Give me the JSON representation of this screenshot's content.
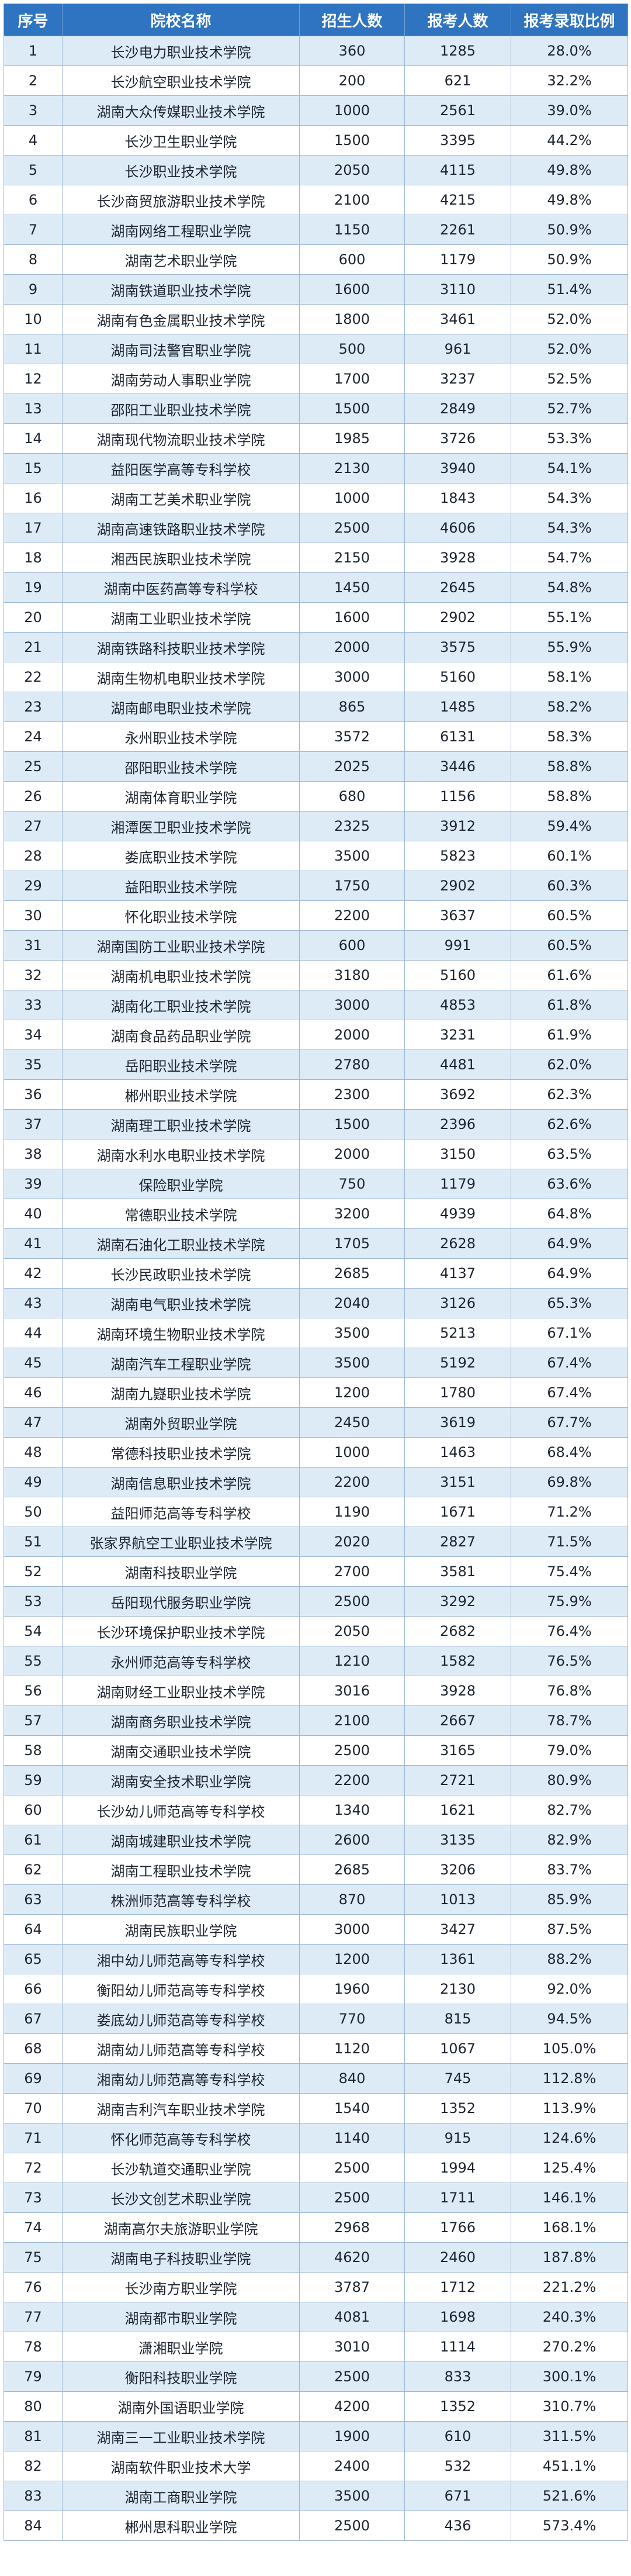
{
  "colors": {
    "header_bg": "#2f74c0",
    "odd_row_bg": "#ddebf7",
    "even_row_bg": "#ffffff",
    "border": "#9fb8d3"
  },
  "columns": [
    "序号",
    "院校名称",
    "招生人数",
    "报考人数",
    "报考录取比例"
  ],
  "rows": [
    [
      "1",
      "长沙电力职业技术学院",
      "360",
      "1285",
      "28.0%"
    ],
    [
      "2",
      "长沙航空职业技术学院",
      "200",
      "621",
      "32.2%"
    ],
    [
      "3",
      "湖南大众传媒职业技术学院",
      "1000",
      "2561",
      "39.0%"
    ],
    [
      "4",
      "长沙卫生职业学院",
      "1500",
      "3395",
      "44.2%"
    ],
    [
      "5",
      "长沙职业技术学院",
      "2050",
      "4115",
      "49.8%"
    ],
    [
      "6",
      "长沙商贸旅游职业技术学院",
      "2100",
      "4215",
      "49.8%"
    ],
    [
      "7",
      "湖南网络工程职业学院",
      "1150",
      "2261",
      "50.9%"
    ],
    [
      "8",
      "湖南艺术职业学院",
      "600",
      "1179",
      "50.9%"
    ],
    [
      "9",
      "湖南铁道职业技术学院",
      "1600",
      "3110",
      "51.4%"
    ],
    [
      "10",
      "湖南有色金属职业技术学院",
      "1800",
      "3461",
      "52.0%"
    ],
    [
      "11",
      "湖南司法警官职业学院",
      "500",
      "961",
      "52.0%"
    ],
    [
      "12",
      "湖南劳动人事职业学院",
      "1700",
      "3237",
      "52.5%"
    ],
    [
      "13",
      "邵阳工业职业技术学院",
      "1500",
      "2849",
      "52.7%"
    ],
    [
      "14",
      "湖南现代物流职业技术学院",
      "1985",
      "3726",
      "53.3%"
    ],
    [
      "15",
      "益阳医学高等专科学校",
      "2130",
      "3940",
      "54.1%"
    ],
    [
      "16",
      "湖南工艺美术职业学院",
      "1000",
      "1843",
      "54.3%"
    ],
    [
      "17",
      "湖南高速铁路职业技术学院",
      "2500",
      "4606",
      "54.3%"
    ],
    [
      "18",
      "湘西民族职业技术学院",
      "2150",
      "3928",
      "54.7%"
    ],
    [
      "19",
      "湖南中医药高等专科学校",
      "1450",
      "2645",
      "54.8%"
    ],
    [
      "20",
      "湖南工业职业技术学院",
      "1600",
      "2902",
      "55.1%"
    ],
    [
      "21",
      "湖南铁路科技职业技术学院",
      "2000",
      "3575",
      "55.9%"
    ],
    [
      "22",
      "湖南生物机电职业技术学院",
      "3000",
      "5160",
      "58.1%"
    ],
    [
      "23",
      "湖南邮电职业技术学院",
      "865",
      "1485",
      "58.2%"
    ],
    [
      "24",
      "永州职业技术学院",
      "3572",
      "6131",
      "58.3%"
    ],
    [
      "25",
      "邵阳职业技术学院",
      "2025",
      "3446",
      "58.8%"
    ],
    [
      "26",
      "湖南体育职业学院",
      "680",
      "1156",
      "58.8%"
    ],
    [
      "27",
      "湘潭医卫职业技术学院",
      "2325",
      "3912",
      "59.4%"
    ],
    [
      "28",
      "娄底职业技术学院",
      "3500",
      "5823",
      "60.1%"
    ],
    [
      "29",
      "益阳职业技术学院",
      "1750",
      "2902",
      "60.3%"
    ],
    [
      "30",
      "怀化职业技术学院",
      "2200",
      "3637",
      "60.5%"
    ],
    [
      "31",
      "湖南国防工业职业技术学院",
      "600",
      "991",
      "60.5%"
    ],
    [
      "32",
      "湖南机电职业技术学院",
      "3180",
      "5160",
      "61.6%"
    ],
    [
      "33",
      "湖南化工职业技术学院",
      "3000",
      "4853",
      "61.8%"
    ],
    [
      "34",
      "湖南食品药品职业学院",
      "2000",
      "3231",
      "61.9%"
    ],
    [
      "35",
      "岳阳职业技术学院",
      "2780",
      "4481",
      "62.0%"
    ],
    [
      "36",
      "郴州职业技术学院",
      "2300",
      "3692",
      "62.3%"
    ],
    [
      "37",
      "湖南理工职业技术学院",
      "1500",
      "2396",
      "62.6%"
    ],
    [
      "38",
      "湖南水利水电职业技术学院",
      "2000",
      "3150",
      "63.5%"
    ],
    [
      "39",
      "保险职业学院",
      "750",
      "1179",
      "63.6%"
    ],
    [
      "40",
      "常德职业技术学院",
      "3200",
      "4939",
      "64.8%"
    ],
    [
      "41",
      "湖南石油化工职业技术学院",
      "1705",
      "2628",
      "64.9%"
    ],
    [
      "42",
      "长沙民政职业技术学院",
      "2685",
      "4137",
      "64.9%"
    ],
    [
      "43",
      "湖南电气职业技术学院",
      "2040",
      "3126",
      "65.3%"
    ],
    [
      "44",
      "湖南环境生物职业技术学院",
      "3500",
      "5213",
      "67.1%"
    ],
    [
      "45",
      "湖南汽车工程职业学院",
      "3500",
      "5192",
      "67.4%"
    ],
    [
      "46",
      "湖南九嶷职业技术学院",
      "1200",
      "1780",
      "67.4%"
    ],
    [
      "47",
      "湖南外贸职业学院",
      "2450",
      "3619",
      "67.7%"
    ],
    [
      "48",
      "常德科技职业技术学院",
      "1000",
      "1463",
      "68.4%"
    ],
    [
      "49",
      "湖南信息职业技术学院",
      "2200",
      "3151",
      "69.8%"
    ],
    [
      "50",
      "益阳师范高等专科学校",
      "1190",
      "1671",
      "71.2%"
    ],
    [
      "51",
      "张家界航空工业职业技术学院",
      "2020",
      "2827",
      "71.5%"
    ],
    [
      "52",
      "湖南科技职业学院",
      "2700",
      "3581",
      "75.4%"
    ],
    [
      "53",
      "岳阳现代服务职业学院",
      "2500",
      "3292",
      "75.9%"
    ],
    [
      "54",
      "长沙环境保护职业技术学院",
      "2050",
      "2682",
      "76.4%"
    ],
    [
      "55",
      "永州师范高等专科学校",
      "1210",
      "1582",
      "76.5%"
    ],
    [
      "56",
      "湖南财经工业职业技术学院",
      "3016",
      "3928",
      "76.8%"
    ],
    [
      "57",
      "湖南商务职业技术学院",
      "2100",
      "2667",
      "78.7%"
    ],
    [
      "58",
      "湖南交通职业技术学院",
      "2500",
      "3165",
      "79.0%"
    ],
    [
      "59",
      "湖南安全技术职业学院",
      "2200",
      "2721",
      "80.9%"
    ],
    [
      "60",
      "长沙幼儿师范高等专科学校",
      "1340",
      "1621",
      "82.7%"
    ],
    [
      "61",
      "湖南城建职业技术学院",
      "2600",
      "3135",
      "82.9%"
    ],
    [
      "62",
      "湖南工程职业技术学院",
      "2685",
      "3206",
      "83.7%"
    ],
    [
      "63",
      "株洲师范高等专科学校",
      "870",
      "1013",
      "85.9%"
    ],
    [
      "64",
      "湖南民族职业学院",
      "3000",
      "3427",
      "87.5%"
    ],
    [
      "65",
      "湘中幼儿师范高等专科学校",
      "1200",
      "1361",
      "88.2%"
    ],
    [
      "66",
      "衡阳幼儿师范高等专科学校",
      "1960",
      "2130",
      "92.0%"
    ],
    [
      "67",
      "娄底幼儿师范高等专科学校",
      "770",
      "815",
      "94.5%"
    ],
    [
      "68",
      "湖南幼儿师范高等专科学校",
      "1120",
      "1067",
      "105.0%"
    ],
    [
      "69",
      "湘南幼儿师范高等专科学校",
      "840",
      "745",
      "112.8%"
    ],
    [
      "70",
      "湖南吉利汽车职业技术学院",
      "1540",
      "1352",
      "113.9%"
    ],
    [
      "71",
      "怀化师范高等专科学校",
      "1140",
      "915",
      "124.6%"
    ],
    [
      "72",
      "长沙轨道交通职业学院",
      "2500",
      "1994",
      "125.4%"
    ],
    [
      "73",
      "长沙文创艺术职业学院",
      "2500",
      "1711",
      "146.1%"
    ],
    [
      "74",
      "湖南高尔夫旅游职业学院",
      "2968",
      "1766",
      "168.1%"
    ],
    [
      "75",
      "湖南电子科技职业学院",
      "4620",
      "2460",
      "187.8%"
    ],
    [
      "76",
      "长沙南方职业学院",
      "3787",
      "1712",
      "221.2%"
    ],
    [
      "77",
      "湖南都市职业学院",
      "4081",
      "1698",
      "240.3%"
    ],
    [
      "78",
      "潇湘职业学院",
      "3010",
      "1114",
      "270.2%"
    ],
    [
      "79",
      "衡阳科技职业学院",
      "2500",
      "833",
      "300.1%"
    ],
    [
      "80",
      "湖南外国语职业学院",
      "4200",
      "1352",
      "310.7%"
    ],
    [
      "81",
      "湖南三一工业职业技术学院",
      "1900",
      "610",
      "311.5%"
    ],
    [
      "82",
      "湖南软件职业技术大学",
      "2400",
      "532",
      "451.1%"
    ],
    [
      "83",
      "湖南工商职业学院",
      "3500",
      "671",
      "521.6%"
    ],
    [
      "84",
      "郴州思科职业学院",
      "2500",
      "436",
      "573.4%"
    ]
  ]
}
